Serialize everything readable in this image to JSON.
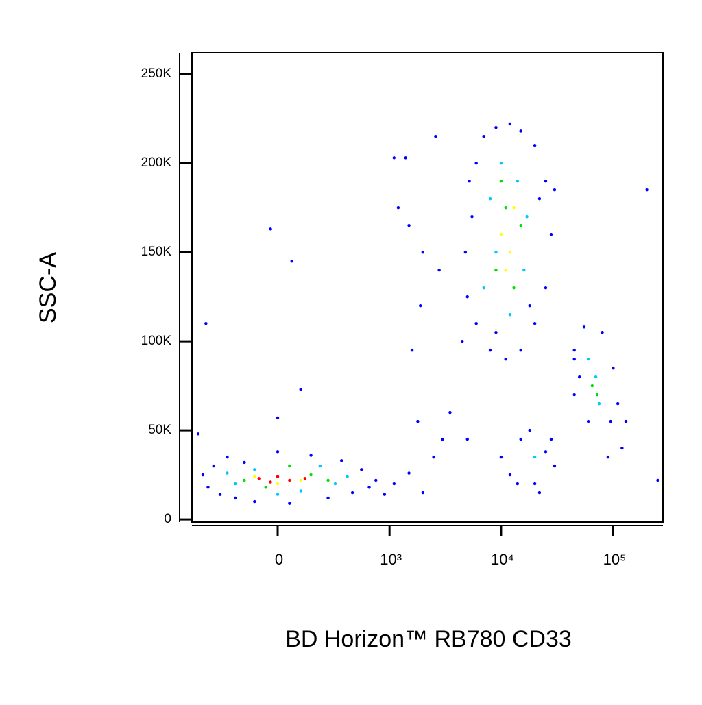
{
  "chart_data": {
    "type": "scatter",
    "x_label": "BD Horizon™ RB780 CD33",
    "y_label": "SSC-A",
    "xscale": "biexponential",
    "xlim": [
      -573,
      278000
    ],
    "ylim": [
      -1500,
      262000
    ],
    "xticks": [
      0,
      {
        "value": 1000,
        "label": "10³"
      },
      {
        "value": 10000,
        "label": "10⁴"
      },
      {
        "value": 100000,
        "label": "10⁵"
      }
    ],
    "yticks": [
      0,
      {
        "value": 50000,
        "label": "50K"
      },
      {
        "value": 100000,
        "label": "100K"
      },
      {
        "value": 150000,
        "label": "150K"
      },
      {
        "value": 200000,
        "label": "200K"
      },
      {
        "value": 250000,
        "label": "250K"
      }
    ],
    "series": [
      {
        "color": "#0000ff",
        "x": [
          -450,
          -400,
          -350,
          -300,
          -250,
          -200,
          -150,
          -100,
          0,
          50,
          150,
          250,
          350,
          450,
          550,
          650,
          750,
          900,
          1100,
          1500,
          2000,
          2500,
          3000,
          1800,
          -500,
          0,
          100,
          60,
          -30,
          -420,
          4500,
          5000,
          5500,
          6000,
          7000,
          9000,
          12000,
          15000,
          20000,
          25000,
          28000,
          25000,
          20000,
          15000,
          11000,
          8000,
          6000,
          4800,
          5200,
          9000,
          22000,
          18000,
          1500,
          2000,
          1200,
          2800,
          1100,
          1400,
          2600,
          1900,
          1600,
          3500,
          5000,
          30000,
          200000,
          45000,
          45000,
          55000,
          80000,
          100000,
          110000,
          95000,
          60000,
          45000,
          50000,
          130000,
          120000,
          90000,
          12000,
          15000,
          20000,
          25000,
          30000,
          18000,
          10000,
          22000,
          28000,
          14000,
          250000
        ],
        "y": [
          25000,
          18000,
          30000,
          14000,
          35000,
          12000,
          32000,
          10000,
          38000,
          9000,
          36000,
          12000,
          33000,
          15000,
          28000,
          18000,
          22000,
          14000,
          20000,
          26000,
          15000,
          35000,
          45000,
          55000,
          48000,
          57000,
          73000,
          145000,
          163000,
          110000,
          100000,
          125000,
          170000,
          200000,
          215000,
          220000,
          222000,
          218000,
          210000,
          190000,
          160000,
          130000,
          110000,
          95000,
          90000,
          95000,
          110000,
          150000,
          190000,
          105000,
          180000,
          120000,
          165000,
          150000,
          175000,
          140000,
          203000,
          203000,
          215000,
          120000,
          95000,
          60000,
          45000,
          185000,
          185000,
          90000,
          95000,
          108000,
          105000,
          85000,
          65000,
          55000,
          55000,
          70000,
          80000,
          55000,
          40000,
          35000,
          25000,
          45000,
          20000,
          38000,
          30000,
          50000,
          35000,
          15000,
          45000,
          20000,
          22000
        ]
      },
      {
        "color": "#00c8ff",
        "x": [
          -200,
          -100,
          100,
          200,
          300,
          400,
          -250,
          0,
          7000,
          8000,
          10000,
          14000,
          16000,
          12000,
          9000,
          17000,
          60000,
          75000,
          70000,
          20000
        ],
        "y": [
          20000,
          28000,
          16000,
          30000,
          20000,
          24000,
          26000,
          14000,
          130000,
          180000,
          200000,
          190000,
          140000,
          115000,
          150000,
          170000,
          90000,
          65000,
          80000,
          35000
        ]
      },
      {
        "color": "#00e000",
        "x": [
          -150,
          -50,
          150,
          250,
          50,
          9000,
          11000,
          13000,
          15000,
          10000,
          65000,
          72000
        ],
        "y": [
          22000,
          18000,
          25000,
          22000,
          30000,
          140000,
          175000,
          130000,
          165000,
          190000,
          75000,
          70000
        ]
      },
      {
        "color": "#ffff00",
        "x": [
          -100,
          0,
          100,
          10000,
          12000,
          13000,
          11000
        ],
        "y": [
          24000,
          20000,
          22000,
          160000,
          150000,
          175000,
          140000
        ]
      },
      {
        "color": "#ff0000",
        "x": [
          -80,
          0,
          50,
          120,
          -30
        ],
        "y": [
          23000,
          24000,
          22000,
          23000,
          21000
        ]
      }
    ]
  }
}
